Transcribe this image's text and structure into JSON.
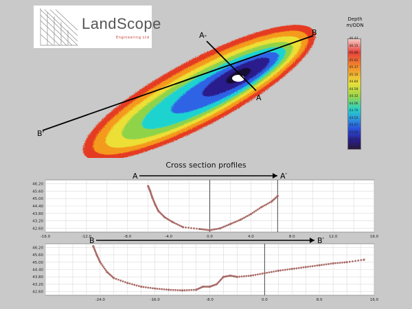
{
  "logo": {
    "text": "LandScope",
    "subtitle": "Engineering Ltd"
  },
  "map": {
    "section_labels": {
      "a_top": "A-",
      "a_bottom": "A",
      "b_top": "B",
      "b_bottom": "B'"
    }
  },
  "legend": {
    "title_line1": "Depth",
    "title_line2": "m/ODN",
    "values": [
      "46.44",
      "46.15",
      "45.88",
      "45.62",
      "45.37",
      "45.10",
      "44.84",
      "44.58",
      "44.32",
      "44.06",
      "43.79",
      "43.53",
      "43.27",
      "43.00",
      "42.75",
      "42.38"
    ]
  },
  "cross_section_title": "Cross section profiles",
  "chart_data": [
    {
      "type": "scatter",
      "name": "A",
      "start_label": "A",
      "end_label": "A′",
      "xlim": [
        -16,
        16
      ],
      "ylim": [
        42.3,
        46.5
      ],
      "xticks": [
        -16.0,
        -12.0,
        -8.0,
        -4.0,
        0.0,
        4.0,
        8.0,
        12.0,
        16.0
      ],
      "yticks": [
        42.6,
        43.2,
        43.8,
        44.4,
        45.0,
        45.6,
        46.2
      ],
      "markers": [
        0,
        6.6
      ],
      "points": [
        [
          -6.0,
          46.0
        ],
        [
          -5.8,
          45.6
        ],
        [
          -5.6,
          45.1
        ],
        [
          -5.3,
          44.5
        ],
        [
          -5.0,
          44.0
        ],
        [
          -4.4,
          43.5
        ],
        [
          -3.6,
          43.1
        ],
        [
          -2.6,
          42.7
        ],
        [
          -1.0,
          42.55
        ],
        [
          0.0,
          42.45
        ],
        [
          1.0,
          42.6
        ],
        [
          2.0,
          42.95
        ],
        [
          3.0,
          43.3
        ],
        [
          4.0,
          43.75
        ],
        [
          5.0,
          44.3
        ],
        [
          6.0,
          44.75
        ],
        [
          6.6,
          45.2
        ]
      ]
    },
    {
      "type": "scatter",
      "name": "B",
      "start_label": "B",
      "end_label": "B′",
      "xlim": [
        -32,
        16
      ],
      "ylim": [
        42.3,
        46.5
      ],
      "xticks": [
        -24.0,
        -16.0,
        -8.0,
        0.0,
        8.0,
        16.0
      ],
      "yticks": [
        42.6,
        43.2,
        43.8,
        44.4,
        45.0,
        45.6,
        46.2
      ],
      "markers": [
        0
      ],
      "points": [
        [
          -25.0,
          46.3
        ],
        [
          -24.5,
          45.6
        ],
        [
          -24.0,
          45.0
        ],
        [
          -23.0,
          44.2
        ],
        [
          -22.0,
          43.7
        ],
        [
          -20.0,
          43.3
        ],
        [
          -18.0,
          43.0
        ],
        [
          -16.0,
          42.85
        ],
        [
          -14.0,
          42.75
        ],
        [
          -12.0,
          42.7
        ],
        [
          -10.0,
          42.75
        ],
        [
          -9.0,
          43.0
        ],
        [
          -8.0,
          43.0
        ],
        [
          -7.0,
          43.2
        ],
        [
          -6.0,
          43.8
        ],
        [
          -5.0,
          43.9
        ],
        [
          -4.0,
          43.8
        ],
        [
          -2.0,
          43.9
        ],
        [
          0.0,
          44.1
        ],
        [
          2.0,
          44.3
        ],
        [
          4.0,
          44.45
        ],
        [
          6.0,
          44.6
        ],
        [
          8.0,
          44.75
        ],
        [
          10.0,
          44.9
        ],
        [
          12.0,
          45.0
        ],
        [
          14.5,
          45.2
        ]
      ]
    }
  ],
  "colors": {
    "points": "#a86a66",
    "line": "#111111",
    "grid": "#d9d9d9"
  }
}
